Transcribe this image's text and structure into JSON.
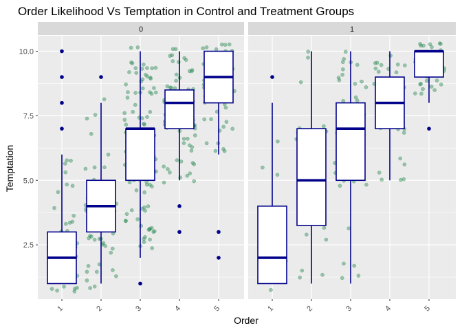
{
  "chart_data": {
    "type": "boxplot",
    "title": "Order Likelihood Vs Temptation in Control and Treatment Groups",
    "xlabel": "Order",
    "ylabel": "Temptation",
    "categories": [
      "1",
      "2",
      "3",
      "4",
      "5"
    ],
    "ylim": [
      0.4,
      10.6
    ],
    "yticks": [
      2.5,
      5.0,
      7.5,
      10.0
    ],
    "ytick_labels": [
      "2.5",
      "5.0",
      "7.5",
      "10.0"
    ],
    "facet_variable_values": [
      "0",
      "1"
    ],
    "colors": {
      "box": "#00008B",
      "points": "#2E8B57",
      "panel_bg": "#EBEBEB",
      "strip_bg": "#D9D9D9",
      "grid": "#FFFFFF"
    },
    "facets": [
      {
        "label": "0",
        "boxes": [
          {
            "x": "1",
            "q1": 1.0,
            "median": 2.0,
            "q3": 3.0,
            "whisker_low": 1.0,
            "whisker_high": 6.0,
            "outliers": [
              7.0,
              8.0,
              9.0,
              10.0
            ],
            "n_points": 45
          },
          {
            "x": "2",
            "q1": 3.0,
            "median": 4.0,
            "q3": 5.0,
            "whisker_low": 1.0,
            "whisker_high": 8.0,
            "outliers": [
              9.0
            ],
            "n_points": 60
          },
          {
            "x": "3",
            "q1": 5.0,
            "median": 7.0,
            "q3": 7.0,
            "whisker_low": 2.0,
            "whisker_high": 10.0,
            "outliers": [
              1.0
            ],
            "n_points": 140
          },
          {
            "x": "4",
            "q1": 7.0,
            "median": 8.0,
            "q3": 8.5,
            "whisker_low": 5.0,
            "whisker_high": 10.0,
            "outliers": [
              3.0,
              4.0
            ],
            "n_points": 80
          },
          {
            "x": "5",
            "q1": 8.0,
            "median": 9.0,
            "q3": 10.0,
            "whisker_low": 6.0,
            "whisker_high": 10.0,
            "outliers": [
              2.0,
              3.0
            ],
            "n_points": 60
          }
        ]
      },
      {
        "label": "1",
        "boxes": [
          {
            "x": "1",
            "q1": 1.0,
            "median": 2.0,
            "q3": 4.0,
            "whisker_low": 1.0,
            "whisker_high": 8.0,
            "outliers": [
              9.0
            ],
            "n_points": 18
          },
          {
            "x": "2",
            "q1": 3.25,
            "median": 5.0,
            "q3": 7.0,
            "whisker_low": 1.0,
            "whisker_high": 10.0,
            "outliers": [],
            "n_points": 25
          },
          {
            "x": "3",
            "q1": 5.0,
            "median": 7.0,
            "q3": 8.0,
            "whisker_low": 1.0,
            "whisker_high": 10.0,
            "outliers": [],
            "n_points": 45
          },
          {
            "x": "4",
            "q1": 7.0,
            "median": 8.0,
            "q3": 9.0,
            "whisker_low": 5.0,
            "whisker_high": 10.0,
            "outliers": [],
            "n_points": 45
          },
          {
            "x": "5",
            "q1": 9.0,
            "median": 10.0,
            "q3": 10.0,
            "whisker_low": 8.0,
            "whisker_high": 10.0,
            "outliers": [
              7.0
            ],
            "n_points": 40
          }
        ]
      }
    ]
  }
}
